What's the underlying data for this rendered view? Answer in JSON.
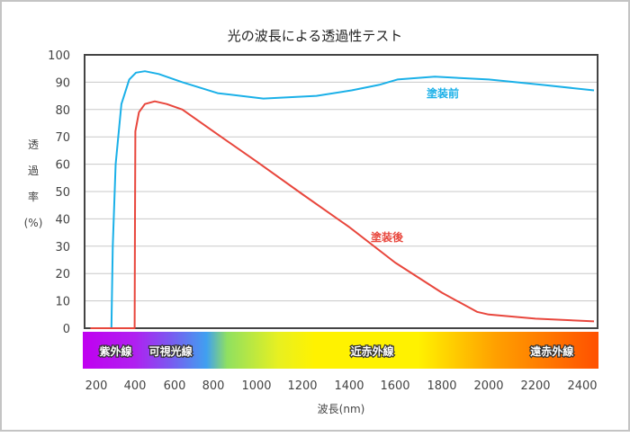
{
  "chart_data": {
    "type": "line",
    "title": "光の波長による透過性テスト",
    "xlabel": "波長(nm)",
    "ylabel_chars": [
      "透",
      "過",
      "率",
      "(%)"
    ],
    "ylim": [
      0,
      100
    ],
    "yticks": [
      0,
      10,
      20,
      30,
      40,
      50,
      60,
      70,
      80,
      90,
      100
    ],
    "xticks": [
      200,
      400,
      600,
      800,
      1000,
      1200,
      1400,
      1600,
      1800,
      2000,
      2200,
      2400
    ],
    "grid": true,
    "series": [
      {
        "name": "塗装前",
        "color": "#1ab0e8",
        "x": [
          170,
          278,
          285,
          300,
          330,
          370,
          405,
          450,
          520,
          640,
          820,
          1030,
          1260,
          1410,
          1530,
          1610,
          1770,
          2000,
          2230,
          2450
        ],
        "y": [
          0,
          0,
          30,
          60,
          82,
          91,
          93.5,
          94,
          93,
          90,
          86,
          84,
          85,
          87,
          89,
          91,
          92,
          91,
          89,
          87
        ]
      },
      {
        "name": "塗装後",
        "color": "#e8463c",
        "x": [
          170,
          398,
          400,
          402,
          420,
          450,
          500,
          560,
          640,
          800,
          1000,
          1200,
          1400,
          1600,
          1800,
          1950,
          2000,
          2200,
          2450
        ],
        "y": [
          0,
          0,
          40,
          72,
          79,
          82,
          83,
          82,
          80,
          72,
          61,
          49,
          37,
          24,
          13,
          6,
          5,
          3.5,
          2.5
        ]
      }
    ],
    "bands": [
      {
        "label": "紫外線",
        "wavelength": 300
      },
      {
        "label": "可視光線",
        "wavelength": 580
      },
      {
        "label": "近赤外線",
        "wavelength": 1500
      },
      {
        "label": "遠赤外線",
        "wavelength": 2270
      }
    ]
  }
}
